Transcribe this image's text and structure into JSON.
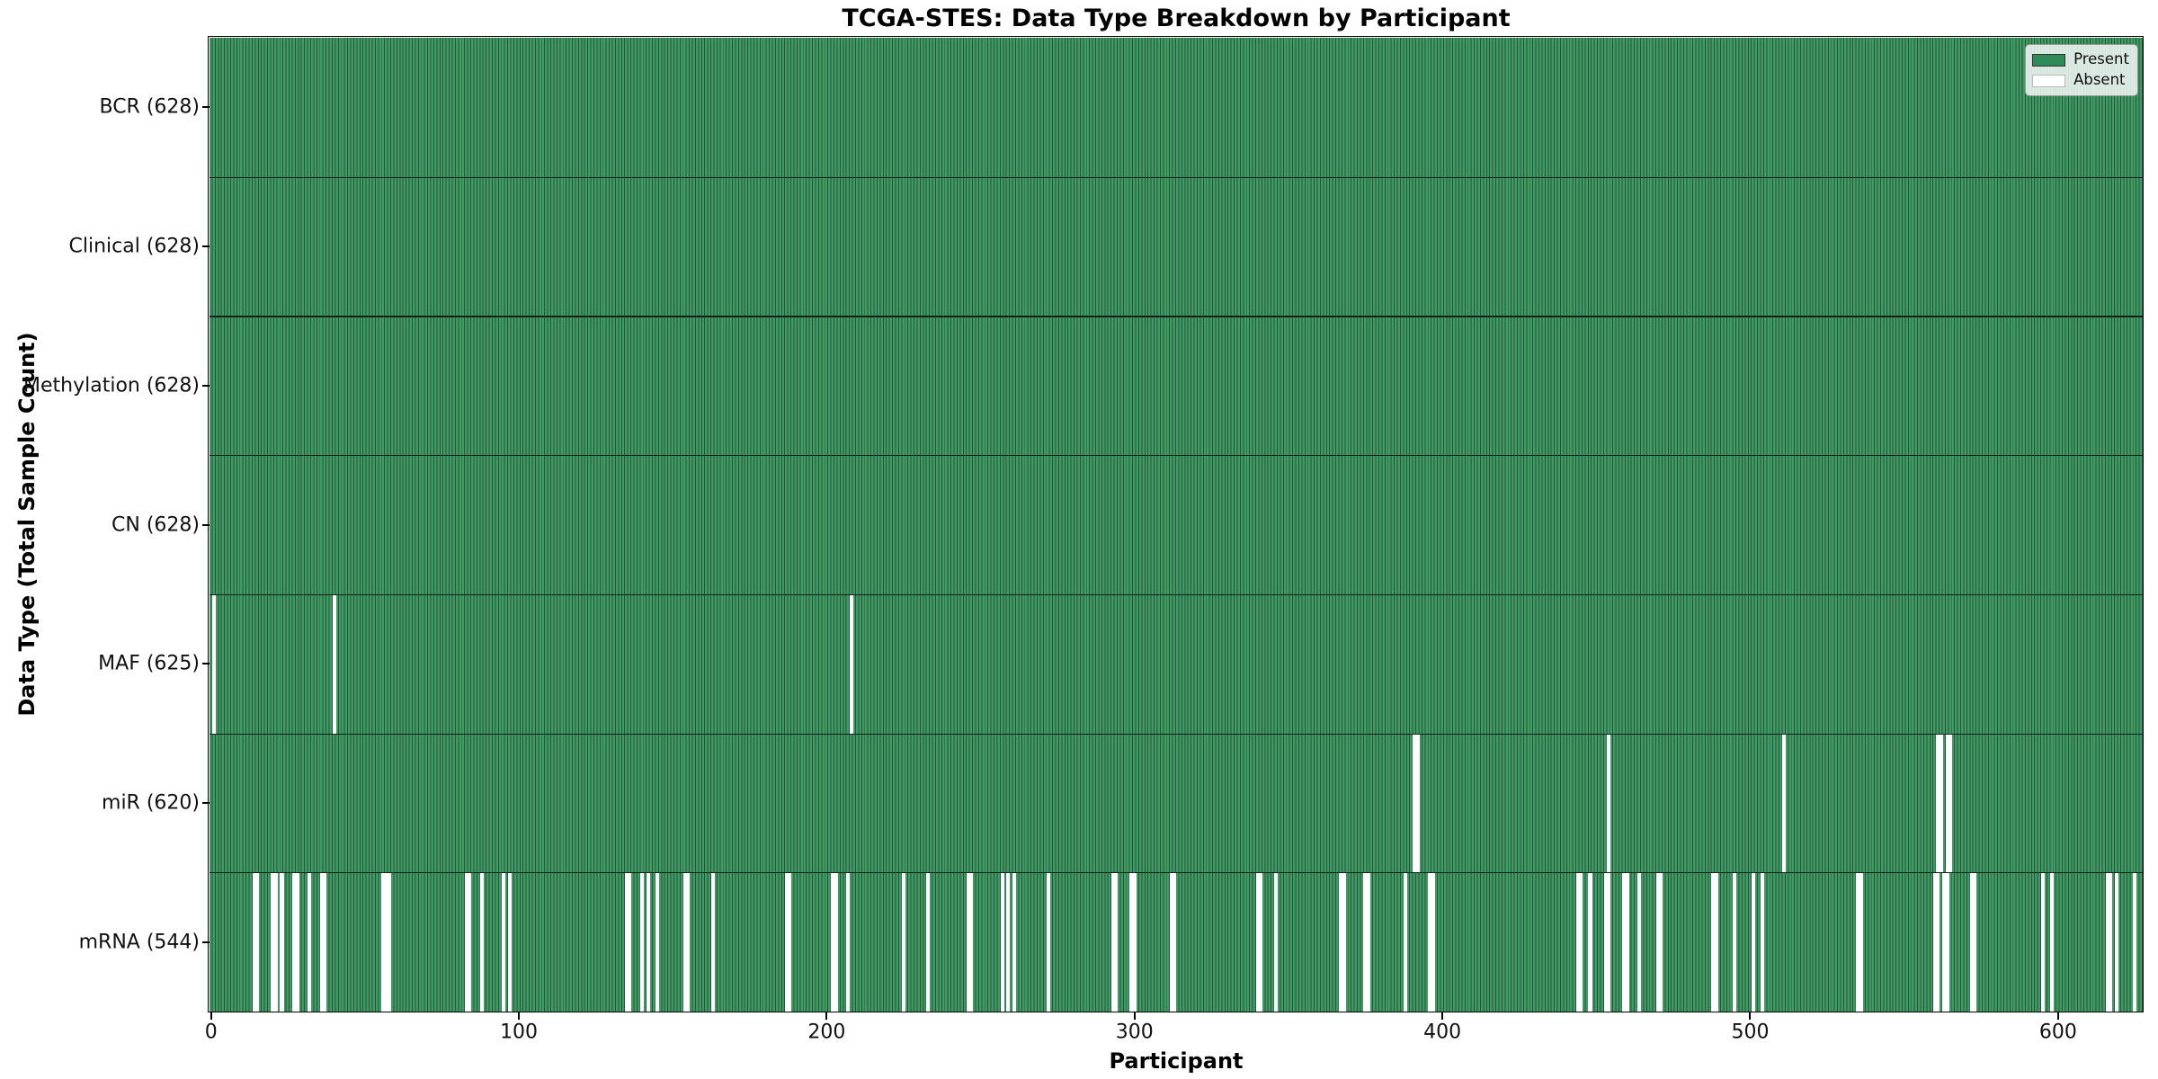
{
  "figure": {
    "title": "TCGA-STES: Data Type Breakdown by Participant"
  },
  "chart_data": {
    "type": "heatmap",
    "title": "TCGA-STES: Data Type Breakdown by Participant",
    "xlabel": "Participant",
    "ylabel": "Data Type (Total Sample Count)",
    "n_participants": 628,
    "x_ticks": [
      0,
      100,
      200,
      300,
      400,
      500,
      600
    ],
    "grid": false,
    "legend_position": "upper-right",
    "colors": {
      "present": "#3f9b63",
      "present_edge": "#275538",
      "absent": "#ffffff",
      "separator": "#14221a",
      "legend_present_swatch": "#2e8b57"
    },
    "legend": {
      "items": [
        {
          "label": "Present",
          "color": "#2e8b57",
          "edge": "#333333"
        },
        {
          "label": "Absent",
          "color": "#ffffff",
          "edge": "#bbbbbb"
        }
      ]
    },
    "rows": [
      {
        "label": "BCR (628)",
        "name": "BCR",
        "present_count": 628,
        "absent_participants": []
      },
      {
        "label": "Clinical (628)",
        "name": "Clinical",
        "present_count": 628,
        "absent_participants": []
      },
      {
        "label": "Methylation (628)",
        "name": "Methylation",
        "present_count": 628,
        "absent_participants": []
      },
      {
        "label": "CN (628)",
        "name": "CN",
        "present_count": 628,
        "absent_participants": []
      },
      {
        "label": "MAF (625)",
        "name": "MAF",
        "present_count": 625,
        "absent_participants": [
          1,
          40,
          208
        ]
      },
      {
        "label": "miR (620)",
        "name": "miR",
        "present_count": 620,
        "absent_participants": [
          391,
          392,
          454,
          511,
          561,
          562,
          564,
          565
        ]
      },
      {
        "label": "mRNA (544)",
        "name": "mRNA",
        "present_count": 544,
        "absent_participants": [
          14,
          15,
          20,
          21,
          23,
          27,
          28,
          32,
          36,
          37,
          56,
          57,
          58,
          83,
          84,
          88,
          95,
          97,
          135,
          136,
          140,
          142,
          145,
          154,
          155,
          163,
          187,
          188,
          202,
          203,
          207,
          225,
          233,
          246,
          247,
          257,
          259,
          261,
          272,
          293,
          294,
          299,
          300,
          312,
          313,
          340,
          341,
          346,
          367,
          368,
          375,
          376,
          388,
          396,
          397,
          444,
          445,
          448,
          453,
          454,
          459,
          460,
          464,
          470,
          471,
          488,
          489,
          495,
          501,
          504,
          535,
          536,
          560,
          561,
          563,
          564,
          572,
          573,
          595,
          598,
          616,
          617,
          619,
          625
        ]
      }
    ]
  }
}
